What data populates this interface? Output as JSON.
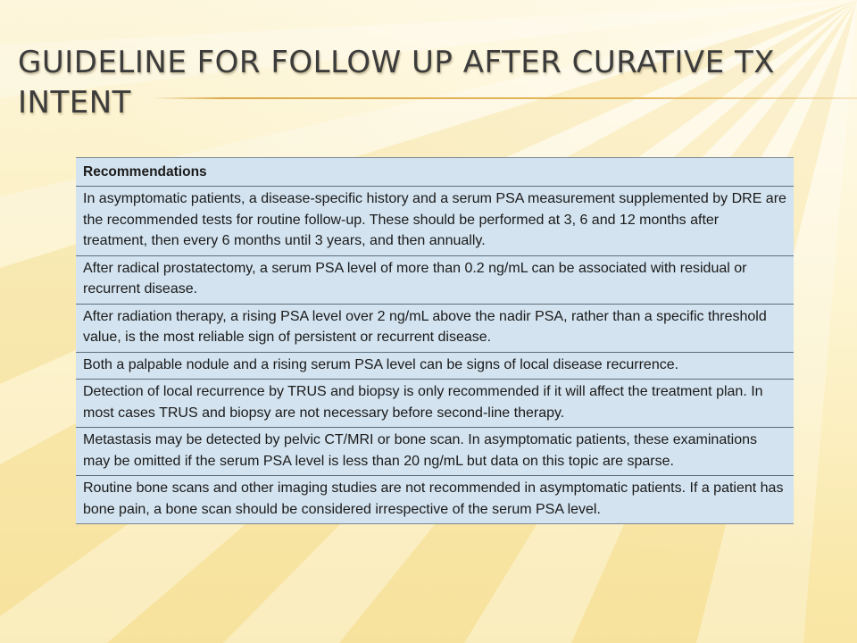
{
  "slide": {
    "title": "Guideline for follow up after curative Tx intent"
  },
  "table": {
    "header": "Recommendations",
    "rows": [
      "In asymptomatic patients, a disease-specific history and a serum PSA measurement supplemented by DRE are the recommended tests for routine follow-up. These should be performed at 3, 6 and 12 months after treatment, then every 6 months until 3 years, and then annually.",
      "After radical prostatectomy, a serum PSA level of more than 0.2 ng/mL can be associated with residual or recurrent disease.",
      "After radiation therapy, a rising PSA level over 2 ng/mL above the nadir PSA, rather than a specific threshold value, is the most reliable sign of persistent or recurrent disease.",
      "Both a palpable nodule and a rising serum PSA level can be signs of local disease recurrence.",
      "Detection of local recurrence by TRUS and biopsy is only recommended if it will affect the treatment plan. In most cases TRUS and biopsy are not necessary before second-line therapy.",
      "Metastasis may be detected by pelvic CT/MRI or bone scan. In asymptomatic patients, these examinations may be omitted if the serum PSA level is less than 20 ng/mL but data on this topic are sparse.",
      "Routine bone scans and other imaging studies are not recommended in asymptomatic patients. If a patient has bone pain, a bone scan should be considered irrespective of the serum PSA level."
    ]
  },
  "theme": {
    "background": "#fbedb8",
    "title_color": "#3c3c3c",
    "rule_color": "#dba94a",
    "cell_fill": "#d3e3ef",
    "cell_border": "#5e6d7a"
  }
}
